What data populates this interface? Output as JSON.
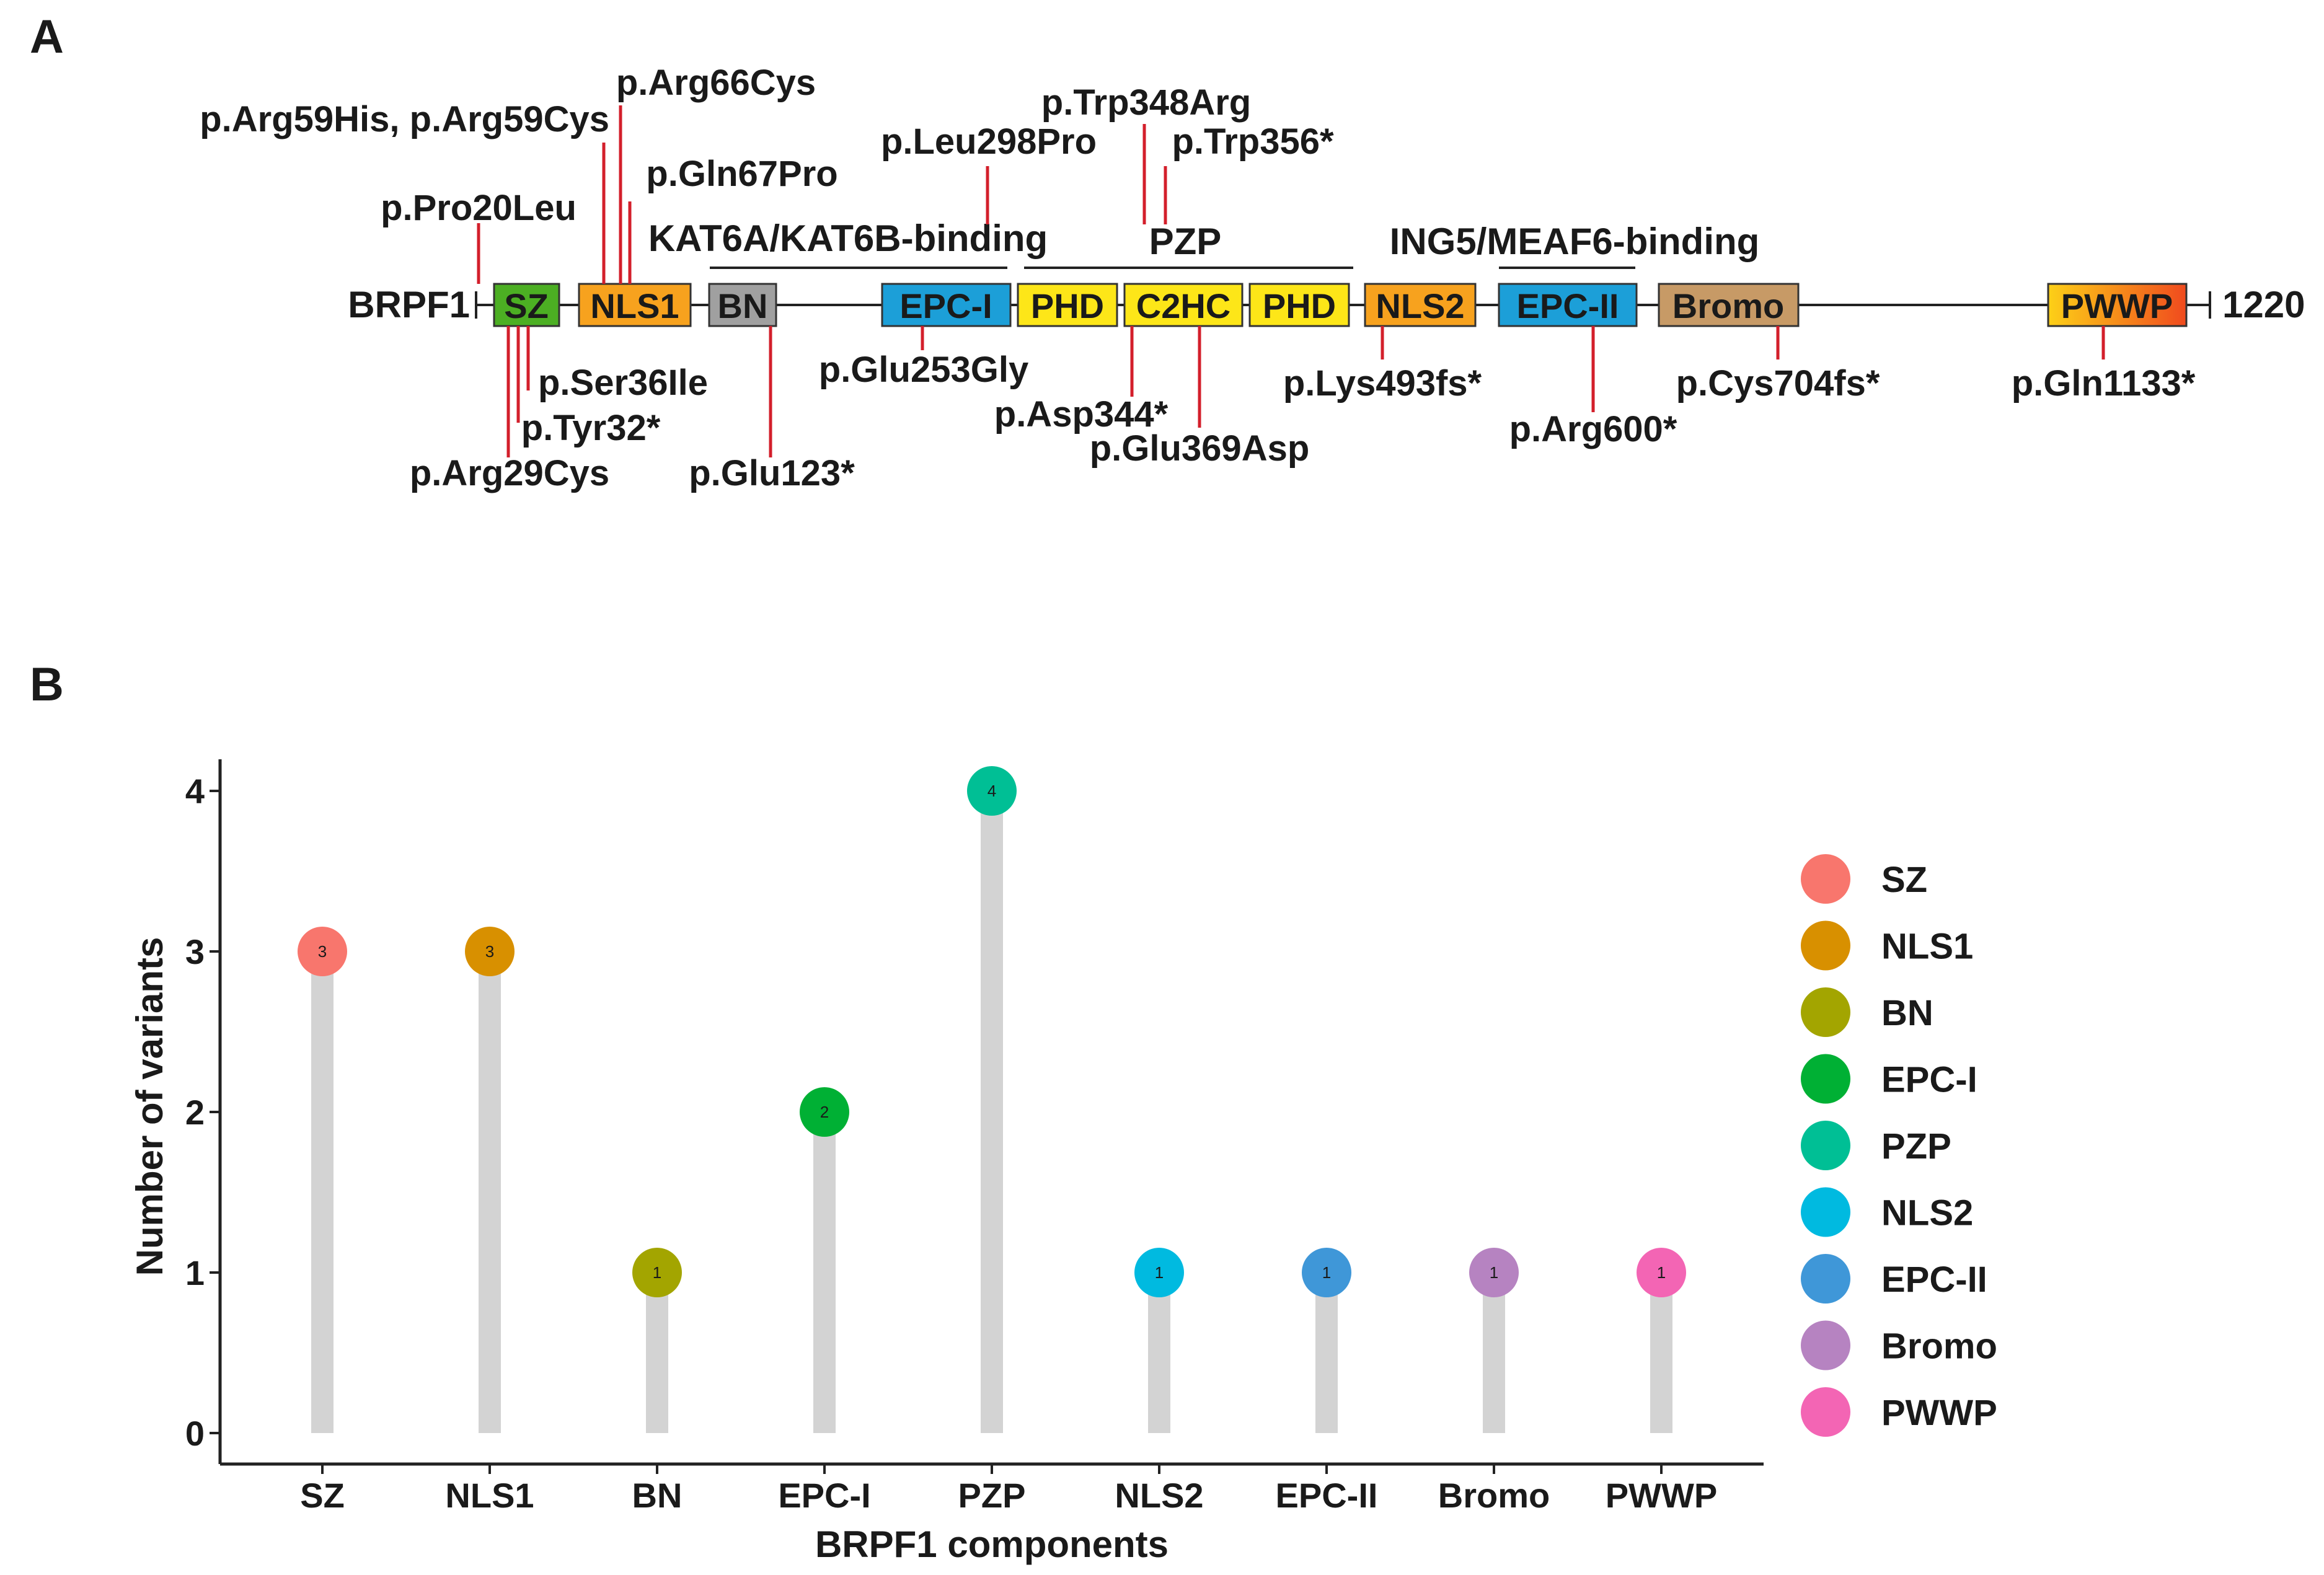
{
  "panel_a": {
    "label": "A",
    "protein": "BRPF1",
    "length": "1220",
    "domains": [
      {
        "name": "SZ",
        "color": "#4caf23"
      },
      {
        "name": "NLS1",
        "color": "#f7a21e"
      },
      {
        "name": "BN",
        "color": "#a0a0a0"
      },
      {
        "name": "EPC-I",
        "color": "#1c9fd8"
      },
      {
        "name": "PHD",
        "color": "#fde618"
      },
      {
        "name": "C2HC",
        "color": "#fde618"
      },
      {
        "name": "PHD",
        "color": "#fde618"
      },
      {
        "name": "NLS2",
        "color": "#f7a21e"
      },
      {
        "name": "EPC-II",
        "color": "#1c9fd8"
      },
      {
        "name": "Bromo",
        "color": "#c79a66"
      },
      {
        "name": "PWWP",
        "color": "#f26a1b"
      }
    ],
    "regions": [
      {
        "label": "KAT6A/KAT6B-binding"
      },
      {
        "label": "PZP"
      },
      {
        "label": "ING5/MEAF6-binding"
      }
    ],
    "variants_above": [
      "p.Pro20Leu",
      "p.Arg59His, p.Arg59Cys",
      "p.Arg66Cys",
      "p.Gln67Pro",
      "p.Leu298Pro",
      "p.Trp348Arg",
      "p.Trp356*"
    ],
    "variants_below": [
      "p.Ser36Ile",
      "p.Tyr32*",
      "p.Arg29Cys",
      "p.Glu123*",
      "p.Glu253Gly",
      "p.Asp344*",
      "p.Glu369Asp",
      "p.Lys493fs*",
      "p.Arg600*",
      "p.Cys704fs*",
      "p.Gln1133*"
    ]
  },
  "panel_b": {
    "label": "B"
  },
  "chart_data": {
    "type": "lollipop",
    "title": "",
    "xlabel": "BRPF1 components",
    "ylabel": "Number of variants",
    "categories": [
      "SZ",
      "NLS1",
      "BN",
      "EPC-I",
      "PZP",
      "NLS2",
      "EPC-II",
      "Bromo",
      "PWWP"
    ],
    "values": [
      3,
      3,
      1,
      2,
      4,
      1,
      1,
      1,
      1
    ],
    "colors": [
      "#f8766d",
      "#d89000",
      "#a3a500",
      "#00b034",
      "#00bf95",
      "#00bae0",
      "#3f97d8",
      "#b683c1",
      "#f365b4"
    ],
    "point_labels": [
      "3",
      "3",
      "1",
      "2",
      "4",
      "1",
      "1",
      "1",
      "1"
    ],
    "yticks": [
      "0",
      "1",
      "2",
      "3",
      "4"
    ],
    "ylim": [
      0,
      4.2
    ],
    "legend": [
      "SZ",
      "NLS1",
      "BN",
      "EPC-I",
      "PZP",
      "NLS2",
      "EPC-II",
      "Bromo",
      "PWWP"
    ],
    "legend_position": "right",
    "grid": false
  }
}
